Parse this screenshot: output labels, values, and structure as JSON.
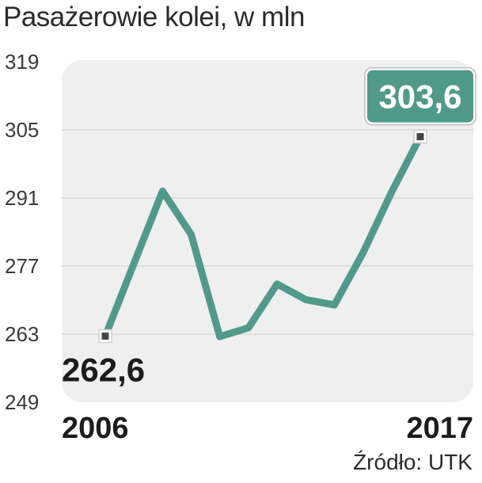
{
  "chart_data": {
    "type": "line",
    "title": "Pasażerowie kolei, w mln",
    "source": "Źródło: UTK",
    "x_labels": [
      "2006",
      "2017"
    ],
    "x": [
      2006,
      2007,
      2008,
      2009,
      2010,
      2011,
      2012,
      2013,
      2014,
      2015,
      2016,
      2017
    ],
    "series": [
      {
        "values": [
          262.6,
          277.5,
          292.4,
          283.5,
          262.5,
          264.3,
          273.3,
          270.1,
          269.0,
          279.7,
          292.2,
          303.6
        ]
      }
    ],
    "yticks": [
      319,
      305,
      291,
      277,
      263,
      249
    ],
    "ylim": [
      249,
      319
    ],
    "grid": true,
    "labels": {
      "first": "262,6",
      "last": "303,6"
    },
    "colors": {
      "line": "#4f9a8a",
      "panel": "#efefef",
      "grid": "#d9d9d9",
      "label_box": "#4f9a8a",
      "label_text": "#ffffff",
      "marker": "#444444"
    }
  }
}
